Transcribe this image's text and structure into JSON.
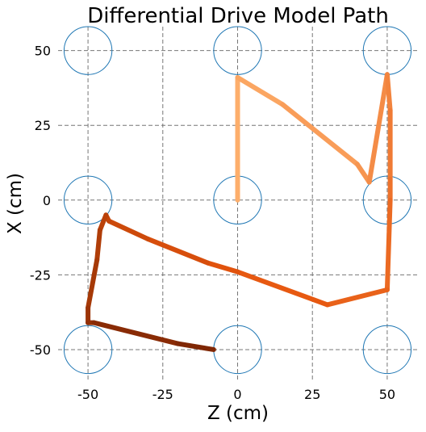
{
  "chart_data": {
    "type": "line",
    "title": "Differential Drive Model Path",
    "xlabel": "Z (cm)",
    "ylabel": "X (cm)",
    "xlim": [
      -60,
      60
    ],
    "ylim": [
      -60,
      58
    ],
    "xticks": [
      -50,
      -25,
      0,
      25,
      50
    ],
    "yticks": [
      50,
      25,
      0,
      -25,
      -50
    ],
    "xtick_labels": [
      "-50",
      "-25",
      "0",
      "25",
      "50"
    ],
    "ytick_labels": [
      "50",
      "25",
      "0",
      "-25",
      "-50"
    ],
    "grid": true,
    "grid_style": "dashed",
    "circles": {
      "radius": 8,
      "color": "#1f77b4",
      "centers": [
        [
          -50,
          50
        ],
        [
          0,
          50
        ],
        [
          50,
          50
        ],
        [
          -50,
          0
        ],
        [
          0,
          0
        ],
        [
          50,
          0
        ],
        [
          -50,
          -50
        ],
        [
          0,
          -50
        ],
        [
          50,
          -50
        ]
      ]
    },
    "path": {
      "z": [
        0,
        0,
        15,
        40,
        44,
        50,
        51,
        51,
        51,
        50,
        30,
        0,
        -10,
        -30,
        -43,
        -44,
        -46,
        -47,
        -50,
        -50,
        -48,
        -20,
        -8
      ],
      "x": [
        0,
        41,
        32,
        12,
        6,
        42,
        30,
        7,
        0,
        -30,
        -35,
        -24,
        -21,
        -13,
        -7,
        -5,
        -10,
        -20,
        -36,
        -41,
        -41,
        -48,
        -50
      ],
      "color_start": "#fdae6b",
      "color_mid": "#e6550d",
      "color_end": "#7f2704"
    }
  }
}
